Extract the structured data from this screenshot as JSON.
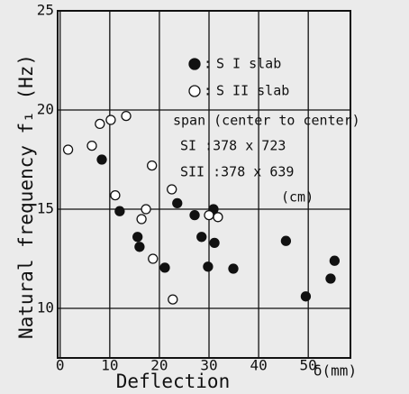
{
  "chart_data": {
    "type": "scatter",
    "x_label": "Deflection",
    "x_unit": "δ(mm)",
    "y_label": "Natural frequency f₁ (Hz)",
    "xlim": [
      -0.5,
      58.5
    ],
    "ylim": [
      7.5,
      25
    ],
    "xticks": [
      0,
      10,
      20,
      30,
      40,
      50
    ],
    "yticks": [
      10,
      15,
      20,
      25
    ],
    "grid": true,
    "annotations": [
      "span (center to center)",
      "SI  :378 x 723",
      "SII :378 x 639",
      "(cm)"
    ],
    "series": [
      {
        "name": "S I slab",
        "color": "#111111",
        "marker": "filled",
        "x": [
          8.4,
          12.0,
          15.6,
          16.0,
          21.1,
          23.6,
          27.1,
          28.5,
          29.8,
          30.9,
          31.1,
          34.9,
          45.5,
          49.5,
          54.5,
          55.3
        ],
        "values": [
          17.5,
          14.9,
          13.6,
          13.1,
          12.05,
          15.3,
          14.7,
          13.6,
          12.1,
          15.0,
          13.3,
          12.0,
          13.4,
          10.6,
          11.5,
          12.4
        ]
      },
      {
        "name": "S II slab",
        "color": "#111111",
        "marker": "open",
        "x": [
          1.6,
          6.4,
          8.0,
          10.2,
          13.3,
          11.1,
          16.4,
          17.3,
          18.5,
          18.7,
          22.5,
          22.7,
          30.0,
          31.8
        ],
        "values": [
          18.0,
          18.2,
          19.3,
          19.5,
          19.7,
          15.7,
          14.5,
          15.0,
          17.2,
          12.5,
          16.0,
          10.45,
          14.7,
          14.6
        ]
      }
    ]
  }
}
